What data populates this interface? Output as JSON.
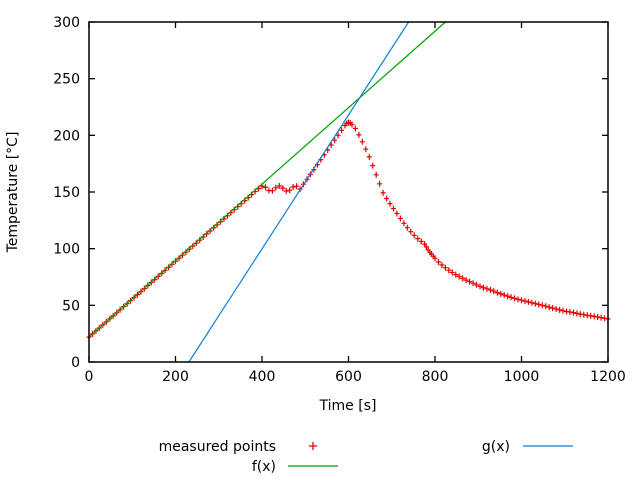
{
  "figure": {
    "background": "#ffffff",
    "border_color": "#000000",
    "text_color": "#000000"
  },
  "chart_data": {
    "type": "scatter",
    "title": "",
    "xlabel": "Time [s]",
    "ylabel": "Temperature [°C]",
    "xlim": [
      0,
      1200
    ],
    "ylim": [
      0,
      300
    ],
    "xticks": [
      0,
      200,
      400,
      600,
      800,
      1000,
      1200
    ],
    "yticks": [
      0,
      50,
      100,
      150,
      200,
      250,
      300
    ],
    "grid": false,
    "legend_position": "below-plot",
    "series": [
      {
        "name": "measured points",
        "type": "scatter",
        "marker": "+",
        "color": "#e60000",
        "points": [
          [
            0,
            22.0
          ],
          [
            8,
            24.7
          ],
          [
            16,
            27.4
          ],
          [
            24,
            30.0
          ],
          [
            32,
            32.7
          ],
          [
            40,
            35.4
          ],
          [
            48,
            38.1
          ],
          [
            56,
            40.7
          ],
          [
            64,
            43.4
          ],
          [
            72,
            46.1
          ],
          [
            80,
            48.8
          ],
          [
            88,
            51.4
          ],
          [
            96,
            54.1
          ],
          [
            104,
            56.8
          ],
          [
            112,
            59.5
          ],
          [
            120,
            62.1
          ],
          [
            128,
            64.8
          ],
          [
            136,
            67.5
          ],
          [
            144,
            70.2
          ],
          [
            152,
            72.8
          ],
          [
            160,
            75.5
          ],
          [
            168,
            78.2
          ],
          [
            176,
            80.9
          ],
          [
            184,
            83.5
          ],
          [
            192,
            86.2
          ],
          [
            200,
            88.9
          ],
          [
            208,
            91.6
          ],
          [
            216,
            94.2
          ],
          [
            224,
            96.9
          ],
          [
            232,
            99.6
          ],
          [
            240,
            102.3
          ],
          [
            248,
            104.9
          ],
          [
            256,
            107.6
          ],
          [
            264,
            110.3
          ],
          [
            272,
            113.0
          ],
          [
            280,
            115.6
          ],
          [
            288,
            118.3
          ],
          [
            296,
            121.0
          ],
          [
            304,
            123.7
          ],
          [
            312,
            126.3
          ],
          [
            320,
            129.0
          ],
          [
            328,
            131.7
          ],
          [
            336,
            134.4
          ],
          [
            344,
            137.0
          ],
          [
            352,
            139.7
          ],
          [
            360,
            142.4
          ],
          [
            368,
            145.1
          ],
          [
            376,
            147.7
          ],
          [
            384,
            150.4
          ],
          [
            392,
            153.0
          ],
          [
            400,
            155.2
          ],
          [
            408,
            154.1
          ],
          [
            416,
            151.3
          ],
          [
            424,
            151.1
          ],
          [
            432,
            153.7
          ],
          [
            440,
            155.3
          ],
          [
            448,
            153.4
          ],
          [
            456,
            150.9
          ],
          [
            464,
            151.6
          ],
          [
            472,
            154.4
          ],
          [
            480,
            155.1
          ],
          [
            488,
            152.6
          ],
          [
            496,
            156.9
          ],
          [
            504,
            161.2
          ],
          [
            512,
            165.5
          ],
          [
            520,
            169.8
          ],
          [
            528,
            174.2
          ],
          [
            536,
            178.5
          ],
          [
            544,
            182.8
          ],
          [
            552,
            187.1
          ],
          [
            560,
            191.4
          ],
          [
            568,
            195.7
          ],
          [
            576,
            200.0
          ],
          [
            584,
            204.4
          ],
          [
            592,
            208.7
          ],
          [
            596,
            210.5
          ],
          [
            600,
            211.2
          ],
          [
            604,
            210.8
          ],
          [
            608,
            209.6
          ],
          [
            616,
            206.0
          ],
          [
            624,
            200.4
          ],
          [
            632,
            194.3
          ],
          [
            640,
            187.8
          ],
          [
            648,
            181.0
          ],
          [
            656,
            173.3
          ],
          [
            664,
            165.2
          ],
          [
            672,
            157.2
          ],
          [
            680,
            149.2
          ],
          [
            688,
            144.3
          ],
          [
            696,
            139.8
          ],
          [
            704,
            135.4
          ],
          [
            712,
            131.0
          ],
          [
            720,
            126.6
          ],
          [
            728,
            122.4
          ],
          [
            736,
            118.5
          ],
          [
            744,
            115.0
          ],
          [
            752,
            111.8
          ],
          [
            760,
            108.9
          ],
          [
            768,
            106.3
          ],
          [
            776,
            104.0
          ],
          [
            780,
            101.6
          ],
          [
            784,
            99.0
          ],
          [
            788,
            96.9
          ],
          [
            792,
            95.3
          ],
          [
            796,
            93.3
          ],
          [
            800,
            91.5
          ],
          [
            808,
            88.2
          ],
          [
            816,
            85.6
          ],
          [
            824,
            83.2
          ],
          [
            832,
            81.0
          ],
          [
            840,
            79.0
          ],
          [
            848,
            77.1
          ],
          [
            856,
            75.4
          ],
          [
            864,
            73.8
          ],
          [
            872,
            72.3
          ],
          [
            880,
            70.9
          ],
          [
            888,
            69.5
          ],
          [
            896,
            68.1
          ],
          [
            904,
            66.7
          ],
          [
            912,
            65.6
          ],
          [
            920,
            64.6
          ],
          [
            928,
            63.6
          ],
          [
            936,
            62.5
          ],
          [
            944,
            61.2
          ],
          [
            952,
            60.1
          ],
          [
            960,
            59.1
          ],
          [
            968,
            58.1
          ],
          [
            976,
            57.1
          ],
          [
            984,
            56.1
          ],
          [
            992,
            55.2
          ],
          [
            1000,
            54.5
          ],
          [
            1008,
            53.7
          ],
          [
            1016,
            53.0
          ],
          [
            1024,
            52.2
          ],
          [
            1032,
            51.5
          ],
          [
            1040,
            50.7
          ],
          [
            1048,
            50.0
          ],
          [
            1056,
            49.2
          ],
          [
            1064,
            48.4
          ],
          [
            1072,
            47.6
          ],
          [
            1080,
            46.8
          ],
          [
            1088,
            46.0
          ],
          [
            1096,
            45.2
          ],
          [
            1104,
            44.6
          ],
          [
            1112,
            44.1
          ],
          [
            1120,
            43.6
          ],
          [
            1128,
            42.9
          ],
          [
            1136,
            42.3
          ],
          [
            1144,
            41.7
          ],
          [
            1152,
            41.2
          ],
          [
            1160,
            40.7
          ],
          [
            1168,
            40.2
          ],
          [
            1176,
            39.7
          ],
          [
            1184,
            39.2
          ],
          [
            1192,
            38.6
          ],
          [
            1200,
            38.0
          ]
        ]
      },
      {
        "name": "f(x)",
        "type": "line",
        "color": "#00a000",
        "points": [
          [
            0,
            22
          ],
          [
            824,
            300
          ]
        ]
      },
      {
        "name": "g(x)",
        "type": "line",
        "color": "#0f7fd8",
        "points": [
          [
            231,
            0
          ],
          [
            739,
            300
          ]
        ]
      }
    ],
    "legend": [
      {
        "label": "measured points",
        "sample": "plus",
        "series": 0
      },
      {
        "label": "f(x)",
        "sample": "line",
        "series": 1
      },
      {
        "label": "g(x)",
        "sample": "line",
        "series": 2
      }
    ]
  }
}
